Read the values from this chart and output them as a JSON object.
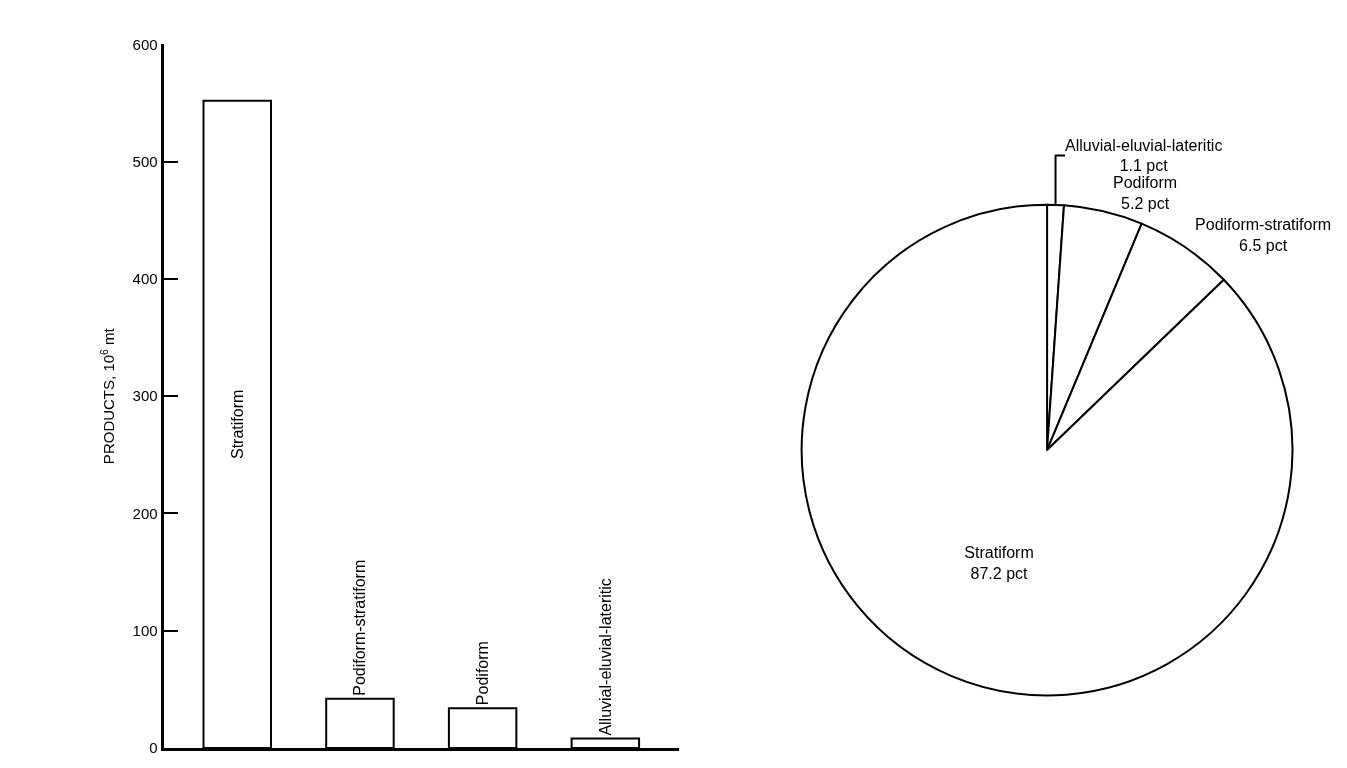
{
  "chart_data": [
    {
      "type": "bar",
      "ylabel": "PRODUCTS, 10$^{6}$ mt",
      "categories": [
        "Stratiform",
        "Podiform-stratiform",
        "Podiform",
        "Alluvial-eluvial-lateritic"
      ],
      "values": [
        552,
        42,
        34,
        8
      ],
      "color": "#ffffff",
      "ylim": [
        0,
        600
      ],
      "yticks": [
        0,
        100,
        200,
        300,
        400,
        500,
        600
      ],
      "tick_labels": "y"
    },
    {
      "type": "pie",
      "categories": [
        "Alluvial-eluvial-lateritic",
        "Podiform",
        "Podiform-stratiform",
        "Stratiform"
      ],
      "values": [
        1.1,
        5.2,
        6.5,
        87.2
      ],
      "value_labels": [
        "1.1 pct",
        "5.2 pct",
        "6.5 pct",
        "87.2 pct"
      ],
      "colors": [
        "#ffffff",
        "#ffffff",
        "#ffffff",
        "#ffffff"
      ]
    }
  ]
}
